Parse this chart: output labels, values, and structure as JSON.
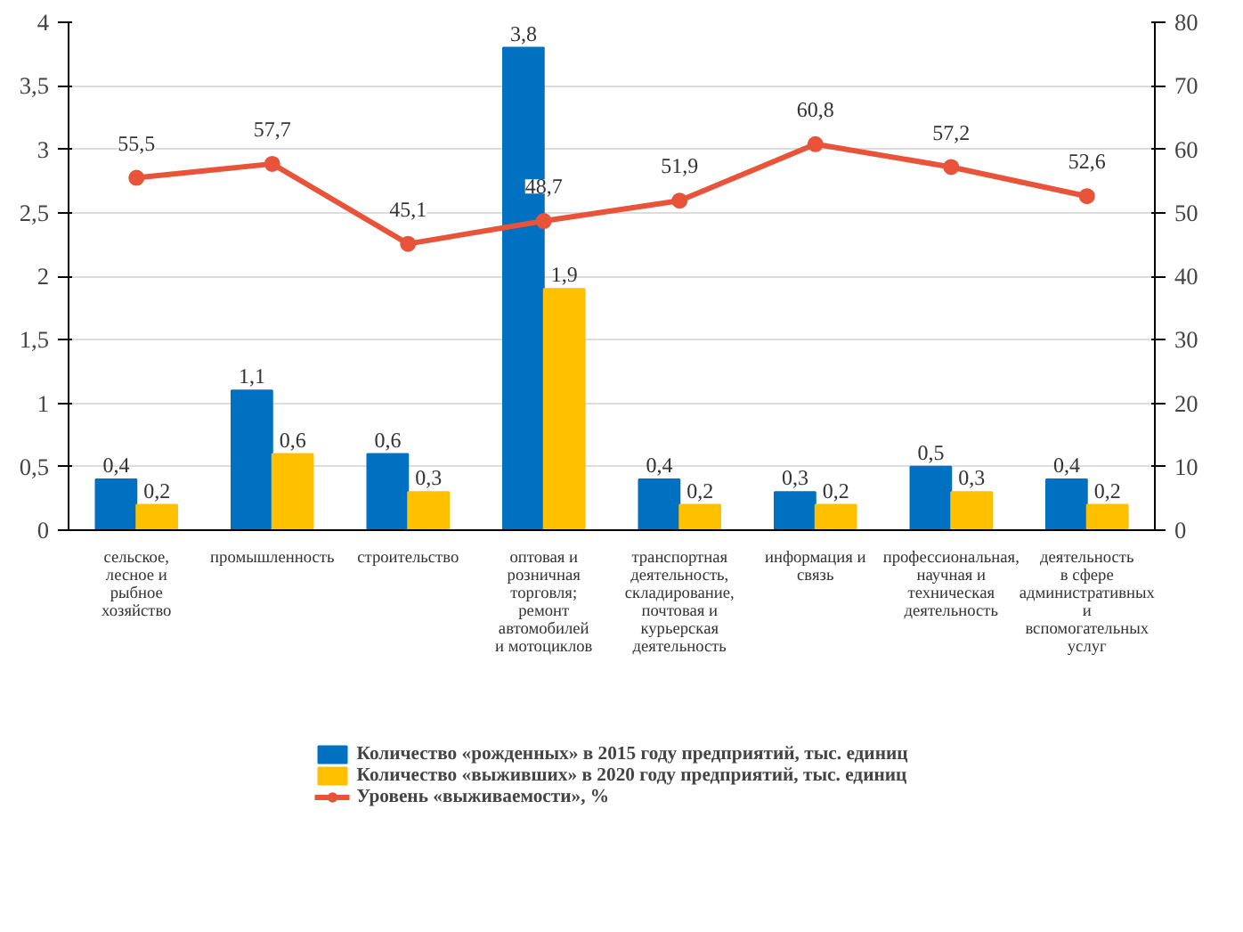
{
  "chart_data": {
    "type": "bar",
    "categories": [
      "сельское, лесное и рыбное хозяйство",
      "промышленность",
      "строительство",
      "оптовая и розничная торговля; ремонт автомобилей и мотоциклов",
      "транспортная деятельность, складирование, почтовая и курьерская деятельность",
      "информация и связь",
      "профессиональная, научная и техническая деятельность",
      "деятельность в сфере административных и вспомогательных услуг"
    ],
    "series": [
      {
        "name": "Количество «рожденных» в 2015 году предприятий, тыс. единиц",
        "color": "#0070c0",
        "values": [
          0.4,
          1.1,
          0.6,
          3.8,
          0.4,
          0.3,
          0.5,
          0.4
        ],
        "value_labels": [
          "0,4",
          "1,1",
          "0,6",
          "3,8",
          "0,4",
          "0,3",
          "0,5",
          "0,4"
        ]
      },
      {
        "name": "Количество «выживших» в 2020 году предприятий, тыс. единиц",
        "color": "#ffc000",
        "values": [
          0.2,
          0.6,
          0.3,
          1.9,
          0.2,
          0.2,
          0.3,
          0.2
        ],
        "value_labels": [
          "0,2",
          "0,6",
          "0,3",
          "1,9",
          "0,2",
          "0,2",
          "0,3",
          "0,2"
        ]
      },
      {
        "name": "Уровень «выживаемости», %",
        "color": "#e8533a",
        "type": "line",
        "axis": "y2",
        "marker": "circle",
        "values": [
          55.5,
          57.7,
          45.1,
          48.7,
          51.9,
          60.8,
          57.2,
          52.6
        ],
        "value_labels": [
          "55,5",
          "57,7",
          "45,1",
          "48,7",
          "51,9",
          "60,8",
          "57,2",
          "52,6"
        ]
      }
    ],
    "ylim": [
      0,
      4
    ],
    "yticks": [
      0,
      {
        "value": 0.5,
        "label": "0,5"
      },
      1,
      {
        "value": 1.5,
        "label": "1,5"
      },
      2,
      {
        "value": 2.5,
        "label": "2,5"
      },
      3,
      {
        "value": 3.5,
        "label": "3,5"
      },
      4
    ],
    "y2lim": [
      0,
      80
    ],
    "y2ticks": [
      0,
      10,
      20,
      30,
      40,
      50,
      60,
      70,
      80
    ],
    "grid": "y",
    "legend": "bottom"
  }
}
